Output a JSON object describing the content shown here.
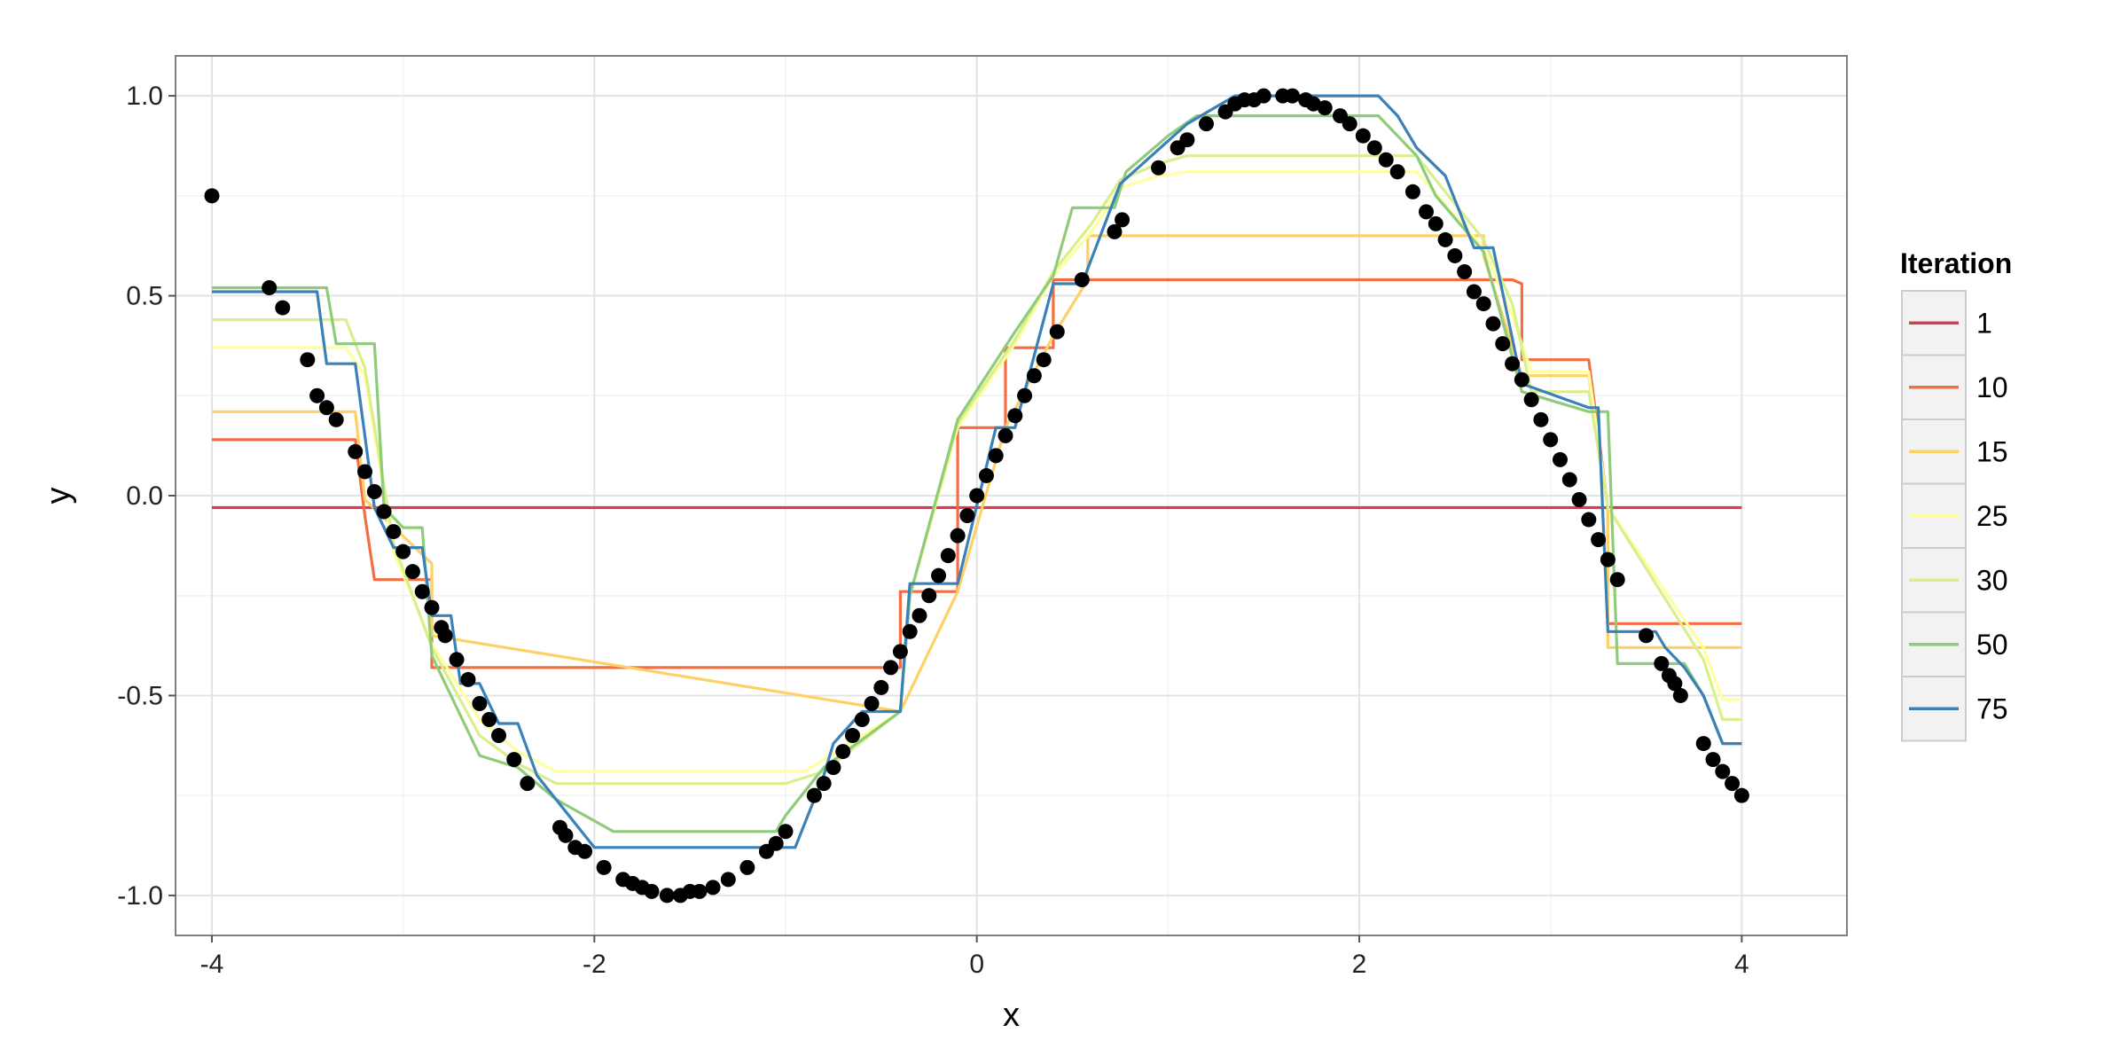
{
  "chart_data": {
    "type": "line",
    "title": "",
    "xlabel": "x",
    "ylabel": "y",
    "xlim": [
      -4.19,
      4.55
    ],
    "ylim": [
      -1.1,
      1.1
    ],
    "x_ticks": [
      -4,
      -2,
      0,
      2,
      4
    ],
    "x_tick_labels": [
      "-4",
      "-2",
      "0",
      "2",
      "4"
    ],
    "y_ticks": [
      -1.0,
      -0.5,
      0.0,
      0.5,
      1.0
    ],
    "y_tick_labels": [
      "-1.0",
      "-0.5",
      "0.0",
      "0.5",
      "1.0"
    ],
    "grid": true,
    "legend": {
      "title": "Iteration",
      "placement": "right"
    },
    "points": {
      "x": [
        -4.0,
        -3.7,
        -3.63,
        -3.5,
        -3.45,
        -3.4,
        -3.35,
        -3.25,
        -3.2,
        -3.15,
        -3.1,
        -3.05,
        -3.0,
        -2.95,
        -2.9,
        -2.85,
        -2.8,
        -2.78,
        -2.72,
        -2.66,
        -2.6,
        -2.55,
        -2.5,
        -2.42,
        -2.35,
        -2.18,
        -2.15,
        -2.1,
        -2.05,
        -1.95,
        -1.85,
        -1.8,
        -1.75,
        -1.7,
        -1.62,
        -1.55,
        -1.5,
        -1.45,
        -1.38,
        -1.3,
        -1.2,
        -1.1,
        -1.05,
        -1.0,
        -0.85,
        -0.8,
        -0.75,
        -0.7,
        -0.65,
        -0.6,
        -0.55,
        -0.5,
        -0.45,
        -0.4,
        -0.35,
        -0.3,
        -0.25,
        -0.2,
        -0.15,
        -0.1,
        -0.05,
        0.0,
        0.05,
        0.1,
        0.15,
        0.2,
        0.25,
        0.3,
        0.35,
        0.42,
        0.55,
        0.72,
        0.76,
        0.95,
        1.05,
        1.1,
        1.2,
        1.3,
        1.35,
        1.4,
        1.45,
        1.5,
        1.6,
        1.65,
        1.72,
        1.76,
        1.82,
        1.9,
        1.95,
        2.02,
        2.08,
        2.14,
        2.2,
        2.28,
        2.35,
        2.4,
        2.45,
        2.5,
        2.55,
        2.6,
        2.65,
        2.7,
        2.75,
        2.8,
        2.85,
        2.9,
        2.95,
        3.0,
        3.05,
        3.1,
        3.15,
        3.2,
        3.25,
        3.3,
        3.35,
        3.5,
        3.58,
        3.62,
        3.65,
        3.68,
        3.8,
        3.85,
        3.9,
        3.95,
        4.0
      ],
      "y": [
        0.75,
        0.52,
        0.47,
        0.34,
        0.25,
        0.22,
        0.19,
        0.11,
        0.06,
        0.01,
        -0.04,
        -0.09,
        -0.14,
        -0.19,
        -0.24,
        -0.28,
        -0.33,
        -0.35,
        -0.41,
        -0.46,
        -0.52,
        -0.56,
        -0.6,
        -0.66,
        -0.72,
        -0.83,
        -0.85,
        -0.88,
        -0.89,
        -0.93,
        -0.96,
        -0.97,
        -0.98,
        -0.99,
        -1.0,
        -1.0,
        -0.99,
        -0.99,
        -0.98,
        -0.96,
        -0.93,
        -0.89,
        -0.87,
        -0.84,
        -0.75,
        -0.72,
        -0.68,
        -0.64,
        -0.6,
        -0.56,
        -0.52,
        -0.48,
        -0.43,
        -0.39,
        -0.34,
        -0.3,
        -0.25,
        -0.2,
        -0.15,
        -0.1,
        -0.05,
        0.0,
        0.05,
        0.1,
        0.15,
        0.2,
        0.25,
        0.3,
        0.34,
        0.41,
        0.54,
        0.66,
        0.69,
        0.82,
        0.87,
        0.89,
        0.93,
        0.96,
        0.98,
        0.99,
        0.99,
        1.0,
        1.0,
        1.0,
        0.99,
        0.98,
        0.97,
        0.95,
        0.93,
        0.9,
        0.87,
        0.84,
        0.81,
        0.76,
        0.71,
        0.68,
        0.64,
        0.6,
        0.56,
        0.51,
        0.48,
        0.43,
        0.38,
        0.33,
        0.29,
        0.24,
        0.19,
        0.14,
        0.09,
        0.04,
        -0.01,
        -0.06,
        -0.11,
        -0.16,
        -0.21,
        -0.35,
        -0.42,
        -0.45,
        -0.47,
        -0.5,
        -0.62,
        -0.66,
        -0.69,
        -0.72,
        -0.75
      ]
    },
    "series": [
      {
        "name": "1",
        "color": "#d53e4f",
        "x": [
          -4.0,
          4.0
        ],
        "y": [
          -0.03,
          -0.03
        ]
      },
      {
        "name": "10",
        "color": "#f46d43",
        "x": [
          -4.0,
          -3.25,
          -3.2,
          -3.15,
          -2.85,
          -2.85,
          -0.4,
          -0.4,
          -0.1,
          -0.1,
          0.15,
          0.15,
          0.4,
          0.4,
          2.8,
          2.85,
          2.85,
          3.2,
          3.3,
          3.3,
          4.0
        ],
        "y": [
          0.14,
          0.14,
          -0.05,
          -0.21,
          -0.21,
          -0.43,
          -0.43,
          -0.24,
          -0.24,
          0.17,
          0.17,
          0.37,
          0.37,
          0.54,
          0.54,
          0.53,
          0.34,
          0.34,
          -0.03,
          -0.32,
          -0.32
        ]
      },
      {
        "name": "15",
        "color": "#fdd166",
        "x": [
          -4.0,
          -3.25,
          -3.2,
          -2.85,
          -2.85,
          -0.4,
          -0.4,
          -0.1,
          -0.1,
          0.15,
          0.15,
          0.4,
          0.4,
          0.58,
          0.58,
          2.65,
          2.65,
          2.85,
          3.2,
          3.3,
          3.3,
          4.0
        ],
        "y": [
          0.21,
          0.21,
          -0.01,
          -0.17,
          -0.35,
          -0.54,
          -0.54,
          -0.24,
          -0.24,
          0.17,
          0.17,
          0.4,
          0.4,
          0.54,
          0.65,
          0.65,
          0.6,
          0.3,
          0.3,
          -0.03,
          -0.38,
          -0.38
        ]
      },
      {
        "name": "25",
        "color": "#ffff9f",
        "x": [
          -4.0,
          -3.3,
          -3.2,
          -3.05,
          -2.85,
          -2.6,
          -2.4,
          -2.2,
          -1.2,
          -0.9,
          -0.4,
          -0.35,
          -0.1,
          0.2,
          0.4,
          0.6,
          0.75,
          0.95,
          1.1,
          2.3,
          2.65,
          2.8,
          2.9,
          3.2,
          3.3,
          3.8,
          3.9,
          4.0
        ],
        "y": [
          0.37,
          0.37,
          0.3,
          -0.14,
          -0.37,
          -0.56,
          -0.64,
          -0.69,
          -0.69,
          -0.69,
          -0.54,
          -0.25,
          0.17,
          0.38,
          0.55,
          0.66,
          0.77,
          0.8,
          0.81,
          0.81,
          0.62,
          0.45,
          0.31,
          0.31,
          -0.03,
          -0.38,
          -0.51,
          -0.51
        ]
      },
      {
        "name": "30",
        "color": "#d9ef8b",
        "x": [
          -4.0,
          -3.3,
          -3.2,
          -3.05,
          -2.85,
          -2.6,
          -2.4,
          -2.2,
          -1.0,
          -0.8,
          -0.4,
          -0.35,
          -0.1,
          0.2,
          0.4,
          0.6,
          0.75,
          0.95,
          1.1,
          2.3,
          2.65,
          2.8,
          2.9,
          3.2,
          3.3,
          3.8,
          3.9,
          4.0
        ],
        "y": [
          0.44,
          0.44,
          0.32,
          -0.12,
          -0.38,
          -0.6,
          -0.67,
          -0.72,
          -0.72,
          -0.69,
          -0.54,
          -0.25,
          0.18,
          0.39,
          0.56,
          0.68,
          0.79,
          0.83,
          0.85,
          0.85,
          0.64,
          0.48,
          0.26,
          0.26,
          -0.03,
          -0.41,
          -0.56,
          -0.56
        ]
      },
      {
        "name": "50",
        "color": "#8fcc7a",
        "x": [
          -4.0,
          -3.4,
          -3.35,
          -3.15,
          -3.1,
          -3.0,
          -2.9,
          -2.85,
          -2.6,
          -2.4,
          -2.2,
          -1.9,
          -1.05,
          -1.0,
          -0.8,
          -0.4,
          -0.35,
          -0.1,
          0.2,
          0.4,
          0.5,
          0.72,
          0.78,
          1.0,
          1.15,
          2.1,
          2.3,
          2.4,
          2.65,
          2.85,
          3.2,
          3.3,
          3.35,
          3.7,
          3.8,
          3.9,
          4.0
        ],
        "y": [
          0.52,
          0.52,
          0.38,
          0.38,
          -0.03,
          -0.08,
          -0.08,
          -0.4,
          -0.65,
          -0.68,
          -0.76,
          -0.84,
          -0.84,
          -0.8,
          -0.68,
          -0.54,
          -0.25,
          0.19,
          0.41,
          0.55,
          0.72,
          0.72,
          0.81,
          0.9,
          0.95,
          0.95,
          0.85,
          0.75,
          0.61,
          0.26,
          0.21,
          0.21,
          -0.42,
          -0.42,
          -0.5,
          -0.62,
          -0.62
        ]
      },
      {
        "name": "75",
        "color": "#3a81b8",
        "x": [
          -4.0,
          -3.45,
          -3.4,
          -3.25,
          -3.15,
          -3.05,
          -2.9,
          -2.85,
          -2.75,
          -2.7,
          -2.6,
          -2.5,
          -2.4,
          -2.3,
          -2.0,
          -0.95,
          -0.8,
          -0.75,
          -0.6,
          -0.4,
          -0.35,
          -0.1,
          0.1,
          0.2,
          0.4,
          0.55,
          0.75,
          1.1,
          1.35,
          1.6,
          2.1,
          2.2,
          2.3,
          2.45,
          2.6,
          2.7,
          2.85,
          3.2,
          3.25,
          3.3,
          3.55,
          3.6,
          3.7,
          3.8,
          3.9,
          4.0
        ],
        "y": [
          0.51,
          0.51,
          0.33,
          0.33,
          -0.03,
          -0.13,
          -0.13,
          -0.3,
          -0.3,
          -0.47,
          -0.47,
          -0.57,
          -0.57,
          -0.7,
          -0.88,
          -0.88,
          -0.7,
          -0.62,
          -0.54,
          -0.54,
          -0.22,
          -0.22,
          0.17,
          0.17,
          0.53,
          0.53,
          0.78,
          0.93,
          1.0,
          1.0,
          1.0,
          0.95,
          0.87,
          0.8,
          0.62,
          0.62,
          0.28,
          0.22,
          0.22,
          -0.34,
          -0.34,
          -0.38,
          -0.43,
          -0.5,
          -0.62,
          -0.62
        ]
      }
    ]
  }
}
